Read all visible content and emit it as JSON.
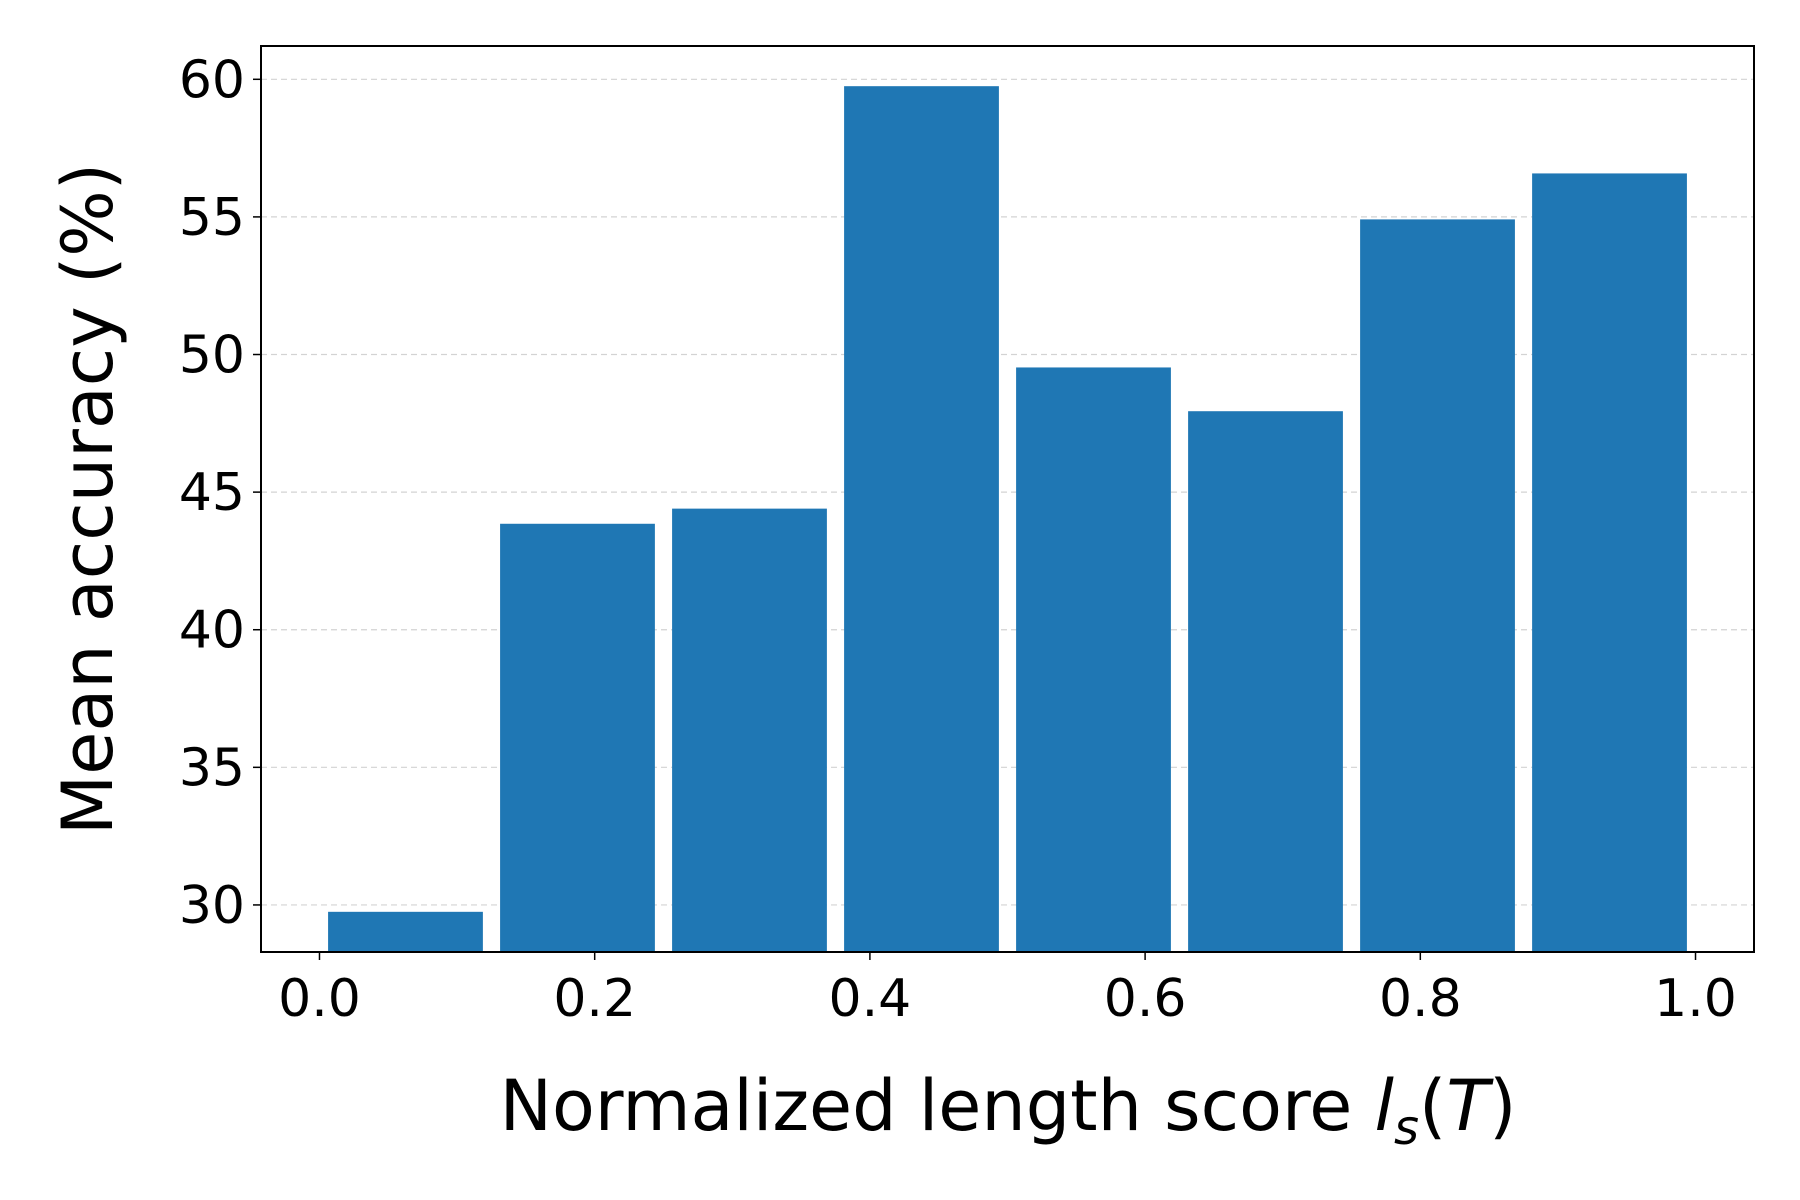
{
  "chart_data": {
    "type": "bar",
    "xlabel_parts": [
      "Normalized length score ",
      "l",
      "s",
      "(",
      "T",
      ")"
    ],
    "ylabel": "Mean accuracy (%)",
    "x": [
      0.0625,
      0.1875,
      0.3125,
      0.4375,
      0.5625,
      0.6875,
      0.8125,
      0.9375
    ],
    "values": [
      29.75,
      43.85,
      44.4,
      59.75,
      49.53,
      47.94,
      54.91,
      56.58
    ],
    "color": "#1f77b4",
    "xlim": [
      -0.0425,
      1.0425
    ],
    "ylim": [
      28.29,
      61.21
    ],
    "xticks": [
      {
        "value": 0,
        "label": "0.0"
      },
      0.2,
      0.4,
      0.6,
      0.8,
      {
        "value": 1,
        "label": "1.0"
      }
    ],
    "yticks": [
      30,
      35,
      40,
      45,
      50,
      55,
      60
    ],
    "grid": true
  }
}
